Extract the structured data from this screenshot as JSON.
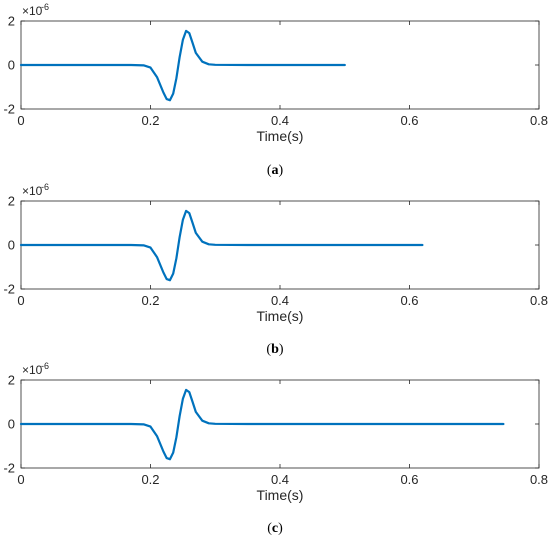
{
  "chart_data": [
    {
      "type": "line",
      "caption_letter": "a",
      "xlabel": "Time(s)",
      "ylabel": "",
      "xlim": [
        0,
        0.8
      ],
      "ylim": [
        -2,
        2
      ],
      "xticks": [
        "0",
        "0.2",
        "0.4",
        "0.6",
        "0.8"
      ],
      "yticks": [
        "-2",
        "0",
        "2"
      ],
      "y_exponent_base": "×10",
      "y_exponent_power": "-6",
      "series": [
        {
          "color": "#0072BD",
          "x": [
            0,
            0.17,
            0.19,
            0.2,
            0.21,
            0.22,
            0.225,
            0.23,
            0.235,
            0.24,
            0.245,
            0.25,
            0.255,
            0.26,
            0.265,
            0.27,
            0.28,
            0.29,
            0.3,
            0.35,
            0.4,
            0.5
          ],
          "y": [
            0,
            0,
            -0.02,
            -0.12,
            -0.55,
            -1.25,
            -1.55,
            -1.6,
            -1.3,
            -0.6,
            0.35,
            1.15,
            1.55,
            1.45,
            1.0,
            0.55,
            0.15,
            0.03,
            0.01,
            0,
            0,
            0
          ]
        }
      ]
    },
    {
      "type": "line",
      "caption_letter": "b",
      "xlabel": "Time(s)",
      "ylabel": "",
      "xlim": [
        0,
        0.8
      ],
      "ylim": [
        -2,
        2
      ],
      "xticks": [
        "0",
        "0.2",
        "0.4",
        "0.6",
        "0.8"
      ],
      "yticks": [
        "-2",
        "0",
        "2"
      ],
      "y_exponent_base": "×10",
      "y_exponent_power": "-6",
      "series": [
        {
          "color": "#0072BD",
          "x": [
            0,
            0.17,
            0.19,
            0.2,
            0.21,
            0.22,
            0.225,
            0.23,
            0.235,
            0.24,
            0.245,
            0.25,
            0.255,
            0.26,
            0.265,
            0.27,
            0.28,
            0.29,
            0.3,
            0.35,
            0.4,
            0.5,
            0.62
          ],
          "y": [
            0,
            0,
            -0.02,
            -0.12,
            -0.55,
            -1.25,
            -1.55,
            -1.6,
            -1.3,
            -0.6,
            0.35,
            1.15,
            1.55,
            1.45,
            1.0,
            0.55,
            0.15,
            0.03,
            0.01,
            0,
            0,
            0,
            0
          ]
        }
      ]
    },
    {
      "type": "line",
      "caption_letter": "c",
      "xlabel": "Time(s)",
      "ylabel": "",
      "xlim": [
        0,
        0.8
      ],
      "ylim": [
        -2,
        2
      ],
      "xticks": [
        "0",
        "0.2",
        "0.4",
        "0.6",
        "0.8"
      ],
      "yticks": [
        "-2",
        "0",
        "2"
      ],
      "y_exponent_base": "×10",
      "y_exponent_power": "-6",
      "series": [
        {
          "color": "#0072BD",
          "x": [
            0,
            0.17,
            0.19,
            0.2,
            0.21,
            0.22,
            0.225,
            0.23,
            0.235,
            0.24,
            0.245,
            0.25,
            0.255,
            0.26,
            0.265,
            0.27,
            0.28,
            0.29,
            0.3,
            0.35,
            0.4,
            0.5,
            0.6,
            0.745
          ],
          "y": [
            0,
            0,
            -0.02,
            -0.12,
            -0.55,
            -1.25,
            -1.55,
            -1.6,
            -1.3,
            -0.6,
            0.35,
            1.15,
            1.55,
            1.45,
            1.0,
            0.55,
            0.15,
            0.03,
            0.01,
            0,
            0,
            0,
            0,
            0
          ]
        }
      ]
    }
  ]
}
